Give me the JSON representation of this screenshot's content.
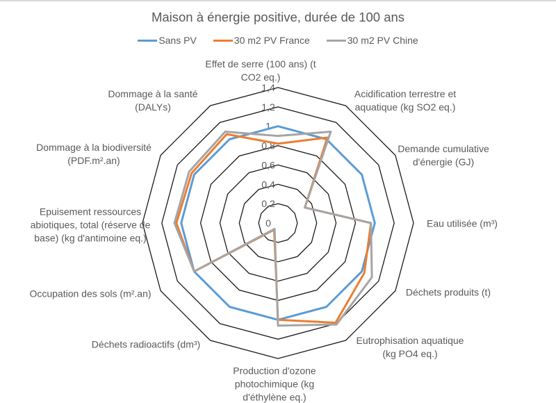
{
  "chart_data": {
    "type": "radar",
    "title": "Maison à énergie positive, durée de 100 ans",
    "categories": [
      "Effet de serre (100 ans) (t\nCO2 eq.)",
      "Acidification terrestre et\naquatique (kg SO2 eq.)",
      "Demande cumulative\nd'énergie (GJ)",
      "Eau utilisée (m³)",
      "Déchets produits (t)",
      "Eutrophisation aquatique\n(kg PO4 eq.)",
      "Production d'ozone\nphotochimique (kg\nd'éthylène eq.)",
      "Déchets radioactifs (dm³)",
      "Occupation des sols (m².an)",
      "Epuisement ressources\nabiotiques, total (réserve de\nbase) (kg d'antimoine eq.)",
      "Dommage à la biodiversité\n(PDF.m².an)",
      "Dommage à la santé\n(DALYs)"
    ],
    "series": [
      {
        "name": "Sans PV",
        "color": "#5B9BD5",
        "values": [
          1,
          1,
          1,
          1,
          1,
          1,
          1,
          1,
          1,
          1,
          1,
          1
        ]
      },
      {
        "name": "30 m2 PV France",
        "color": "#ED7D31",
        "values": [
          0.82,
          1.02,
          0.32,
          0.96,
          1.03,
          1.19,
          1.0,
          0.08,
          1.0,
          1.05,
          1.03,
          1.06
        ]
      },
      {
        "name": "30 m2 PV Chine",
        "color": "#A5A5A5",
        "values": [
          0.9,
          1.09,
          0.32,
          0.96,
          1.12,
          1.21,
          1.06,
          0.07,
          1.0,
          1.07,
          1.06,
          1.09
        ]
      }
    ],
    "rlim": [
      0,
      1.4
    ],
    "ticks": [
      "0",
      "0,2",
      "0,4",
      "0,6",
      "0,8",
      "1",
      "1,2",
      "1,4"
    ],
    "legend": "top",
    "grid": true
  }
}
